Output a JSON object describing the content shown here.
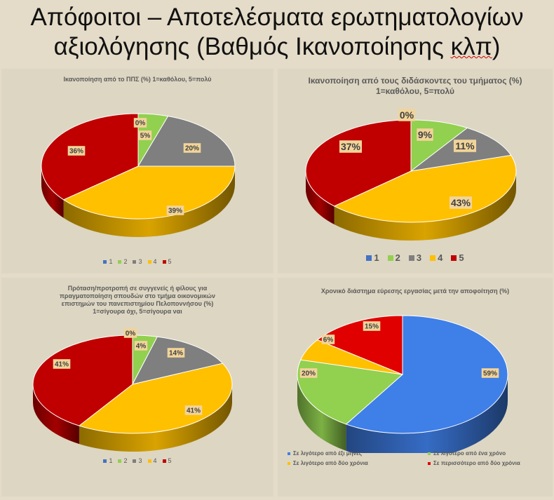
{
  "slide": {
    "title_line1": "Απόφοιτοι – Αποτελέσματα ερωτηματολογίων",
    "title_line2_prefix": "αξιολόγησης (Βαθμός Ικανοποίησης ",
    "title_line2_word": "κλπ",
    "title_line2_suffix": ")"
  },
  "chart_data": [
    {
      "type": "pie",
      "title": "Ικανοποίηση από το ΠΠΣ (%) 1=καθόλου,  5=πολύ",
      "categories": [
        "1",
        "2",
        "3",
        "4",
        "5"
      ],
      "values": [
        0,
        5,
        20,
        39,
        36
      ],
      "labels": [
        "0%",
        "5%",
        "20%",
        "39%",
        "36%"
      ],
      "colors": [
        "#4472c4",
        "#92d050",
        "#7f7f7f",
        "#ffc000",
        "#c00000"
      ],
      "legend": "bottom"
    },
    {
      "type": "pie",
      "title": "Ικανοποίηση από τους διδάσκοντες του τμήματος (%) 1=καθόλου,  5=πολύ",
      "categories": [
        "1",
        "2",
        "3",
        "4",
        "5"
      ],
      "values": [
        0,
        9,
        11,
        43,
        37
      ],
      "labels": [
        "0%",
        "9%",
        "11%",
        "43%",
        "37%"
      ],
      "colors": [
        "#4472c4",
        "#92d050",
        "#7f7f7f",
        "#ffc000",
        "#c00000"
      ],
      "legend": "bottom"
    },
    {
      "type": "pie",
      "title": "Πρόταση/προτροπή σε συγγενείς ή φίλους για πραγματοποίηση σπουδών στο τμήμα οικονομικών επιστημών του πανεπιστημίου Πελοποννήσου (%) 1=σίγουρα όχι, 5=σίγουρα ναι",
      "title_lines": [
        "Πρόταση/προτροπή σε συγγενείς ή φίλους για",
        "πραγματοποίηση σπουδών στο τμήμα οικονομικών",
        "επιστημών του πανεπιστημίου Πελοποννήσου (%)",
        "1=σίγουρα όχι, 5=σίγουρα ναι"
      ],
      "categories": [
        "1",
        "2",
        "3",
        "4",
        "5"
      ],
      "values": [
        0,
        4,
        14,
        41,
        41
      ],
      "labels": [
        "0%",
        "4%",
        "14%",
        "41%",
        "41%"
      ],
      "colors": [
        "#4472c4",
        "#92d050",
        "#7f7f7f",
        "#ffc000",
        "#c00000"
      ],
      "legend": "bottom"
    },
    {
      "type": "pie",
      "title": "Χρονικό διάστημα εύρεσης εργασίας μετά την αποφοίτηση (%)",
      "categories": [
        "Σε λιγότερο από έξι μήνες",
        "Σε λιγότερο από ένα χρόνο",
        "Σε λιγότερο από δύο χρόνια",
        "Σε περισσότερο από δύο χρόνια"
      ],
      "values": [
        59,
        20,
        6,
        15
      ],
      "labels": [
        "59%",
        "20%",
        "6%",
        "15%"
      ],
      "colors": [
        "#3f7fe8",
        "#92d050",
        "#ffc000",
        "#e00000"
      ],
      "legend": "bottom"
    }
  ]
}
